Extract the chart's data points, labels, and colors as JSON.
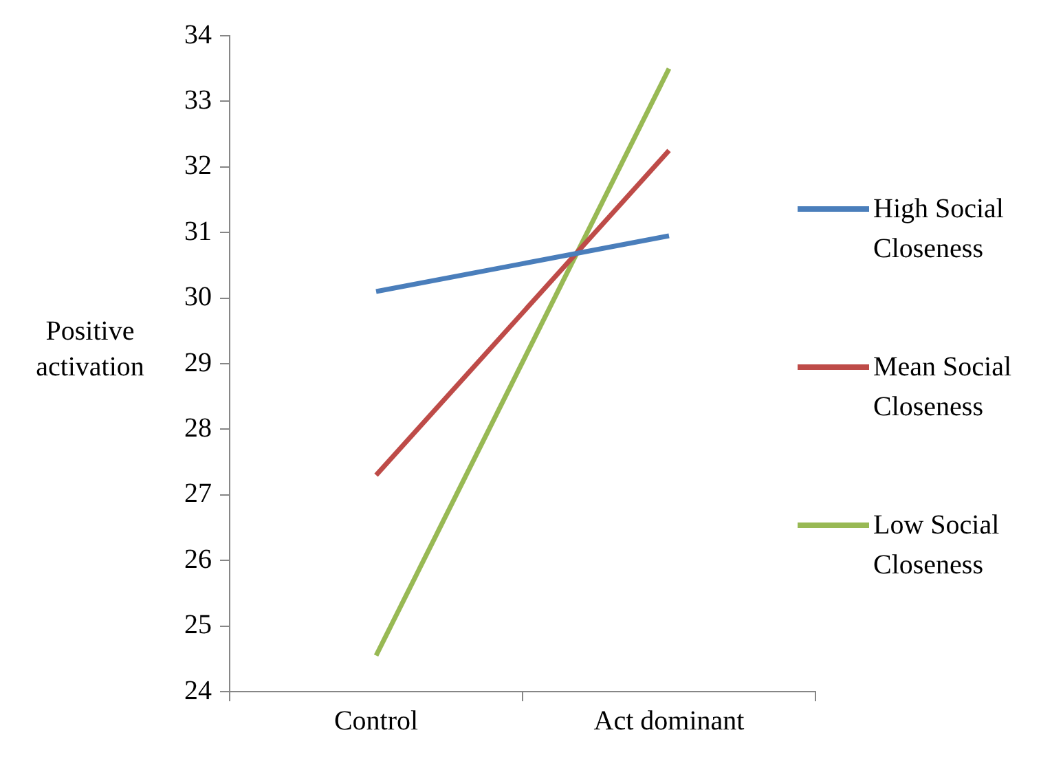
{
  "chart_data": {
    "type": "line",
    "ylabel": "Positive activation",
    "categories": [
      "Control",
      "Act dominant"
    ],
    "series": [
      {
        "name": "High Social Closeness",
        "color": "#4a7ebb",
        "values": [
          30.1,
          30.95
        ]
      },
      {
        "name": "Mean Social Closeness",
        "color": "#be4b48",
        "values": [
          27.3,
          32.25
        ]
      },
      {
        "name": "Low Social Closeness",
        "color": "#98b954",
        "values": [
          24.55,
          33.5
        ]
      }
    ],
    "ylim": [
      24,
      34
    ],
    "yticks": [
      24,
      25,
      26,
      27,
      28,
      29,
      30,
      31,
      32,
      33,
      34
    ],
    "grid": false,
    "legend": "right",
    "marker": "none",
    "line_style": "solid"
  }
}
